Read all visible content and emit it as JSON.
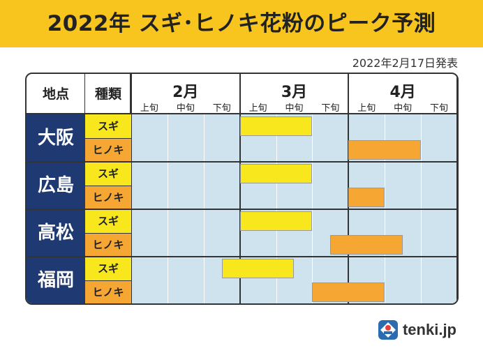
{
  "title": "2022年 スギ･ヒノキ花粉のピーク予測",
  "date_note": "2022年2月17日発表",
  "header": {
    "place_label": "地点",
    "type_label": "種類",
    "months": [
      "2月",
      "3月",
      "4月"
    ],
    "dekads": [
      "上旬",
      "中旬",
      "下旬"
    ]
  },
  "rows": [
    {
      "place": "大阪",
      "types": [
        {
          "label": "スギ",
          "kind": "sugi",
          "start": 3,
          "end": 5
        },
        {
          "label": "ヒノキ",
          "kind": "hinoki",
          "start": 6,
          "end": 8
        }
      ]
    },
    {
      "place": "広島",
      "types": [
        {
          "label": "スギ",
          "kind": "sugi",
          "start": 3,
          "end": 5
        },
        {
          "label": "ヒノキ",
          "kind": "hinoki",
          "start": 6,
          "end": 7
        }
      ]
    },
    {
      "place": "高松",
      "types": [
        {
          "label": "スギ",
          "kind": "sugi",
          "start": 3,
          "end": 5
        },
        {
          "label": "ヒノキ",
          "kind": "hinoki",
          "start": 5.5,
          "end": 7.5
        }
      ]
    },
    {
      "place": "福岡",
      "types": [
        {
          "label": "スギ",
          "kind": "sugi",
          "start": 2.5,
          "end": 4.5
        },
        {
          "label": "ヒノキ",
          "kind": "hinoki",
          "start": 5,
          "end": 7
        }
      ]
    }
  ],
  "logo": {
    "text": "tenki.jp",
    "icon": "tenki-logo-icon"
  },
  "colors": {
    "sugi": "#f8e71c",
    "hinoki": "#f5a633",
    "grid_bg": "#cfe3ef",
    "place_bg": "#1f3a73",
    "title_bar": "#f7c51e"
  }
}
